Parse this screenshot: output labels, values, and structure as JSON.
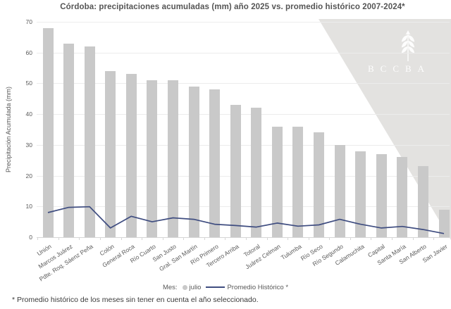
{
  "title": "Córdoba: precipitaciones acumuladas (mm) año 2025 vs. promedio histórico 2007-2024*",
  "watermark": {
    "text": "BCCBA",
    "icon": "wheat-icon"
  },
  "legend": {
    "prefix_label": "Mes:",
    "bar_label": "julio",
    "line_label": "Promedio Histórico *"
  },
  "footnote": "* Promedio histórico de los meses sin tener en cuenta el año seleccionado.",
  "colors": {
    "bar": "#c9c9c9",
    "line": "#3f4d80",
    "text": "#595959",
    "gridline": "#ececec",
    "watermark_bg": "#e3e2e0",
    "watermark_text": "#f7f6f5"
  },
  "chart_data": {
    "type": "bar",
    "subtype": "bar+line combo",
    "title": "Córdoba: precipitaciones acumuladas (mm) año 2025 vs. promedio histórico 2007-2024*",
    "xlabel": "",
    "ylabel": "Precipitación Acumulada (mm)",
    "ylim": [
      0,
      70
    ],
    "yticks": [
      0,
      10,
      20,
      30,
      40,
      50,
      60,
      70
    ],
    "grid": true,
    "legend_position": "bottom",
    "categories": [
      "Unión",
      "Marcos Juárez",
      "Pdte. Roq. Sáenz Peña",
      "Colón",
      "General Roca",
      "Río Cuarto",
      "San Justo",
      "Gral. San Martín",
      "Río Primero",
      "Tercero Arriba",
      "Totoral",
      "Juárez Celman",
      "Tulumba",
      "Río Seco",
      "Río Segundo",
      "Calamuchita",
      "Capital",
      "Santa María",
      "San Alberto",
      "San Javier"
    ],
    "series": [
      {
        "name": "julio",
        "render": "bar",
        "color": "#c9c9c9",
        "values": [
          68,
          63,
          62,
          54,
          53,
          51,
          51,
          49,
          48,
          43,
          42,
          36,
          36,
          34,
          30,
          28,
          27,
          26,
          23,
          9
        ]
      },
      {
        "name": "Promedio Histórico *",
        "render": "line",
        "color": "#3f4d80",
        "values": [
          8,
          9.7,
          9.9,
          3,
          6.8,
          5,
          6.3,
          5.8,
          4.2,
          3.8,
          3.3,
          4.6,
          3.6,
          4,
          5.8,
          4.2,
          3,
          3.5,
          2.5,
          1.2
        ]
      }
    ]
  }
}
